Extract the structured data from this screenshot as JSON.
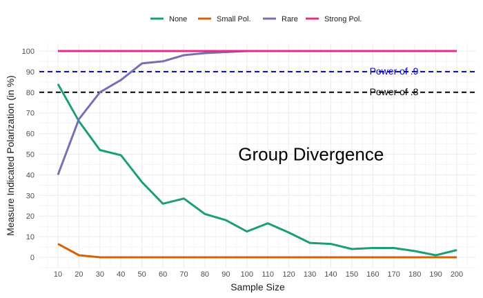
{
  "chart_data": {
    "type": "line",
    "xlabel": "Sample Size",
    "ylabel": "Measure Indicated Polarization (in %)",
    "x": [
      10,
      20,
      30,
      40,
      50,
      60,
      70,
      80,
      90,
      100,
      110,
      120,
      130,
      140,
      150,
      160,
      170,
      180,
      190,
      200
    ],
    "xlim": [
      10,
      200
    ],
    "ylim": [
      0,
      100
    ],
    "yticks": [
      0,
      10,
      20,
      30,
      40,
      50,
      60,
      70,
      80,
      90,
      100
    ],
    "grid": true,
    "legend_position": "top",
    "series": [
      {
        "name": "None",
        "color": "#1b9e77",
        "values": [
          84,
          66,
          52,
          49.5,
          36.5,
          26,
          28.5,
          21,
          18,
          12.5,
          16.5,
          12,
          7,
          6.5,
          4,
          4.5,
          4.5,
          3,
          1,
          3.5
        ]
      },
      {
        "name": "Small Pol.",
        "color": "#d95f02",
        "values": [
          6.5,
          1,
          0,
          0,
          0,
          0,
          0,
          0,
          0,
          0,
          0,
          0,
          0,
          0,
          0,
          0,
          0,
          0,
          0,
          0
        ]
      },
      {
        "name": "Rare",
        "color": "#7570b3",
        "values": [
          40,
          67,
          80,
          86,
          94,
          95,
          98,
          99,
          99.5,
          100,
          100,
          100,
          100,
          100,
          100,
          100,
          100,
          100,
          100,
          100
        ]
      },
      {
        "name": "Strong Pol.",
        "color": "#e7298a",
        "values": [
          100,
          100,
          100,
          100,
          100,
          100,
          100,
          100,
          100,
          100,
          100,
          100,
          100,
          100,
          100,
          100,
          100,
          100,
          100,
          100
        ]
      }
    ],
    "reference_lines": [
      {
        "label": "Power of .9",
        "y": 90,
        "color": "#0000cc"
      },
      {
        "label": "Power of .8",
        "y": 80,
        "color": "#000000"
      }
    ],
    "annotations": [
      {
        "text": "Group Divergence",
        "x": 100,
        "y": 50
      }
    ]
  }
}
